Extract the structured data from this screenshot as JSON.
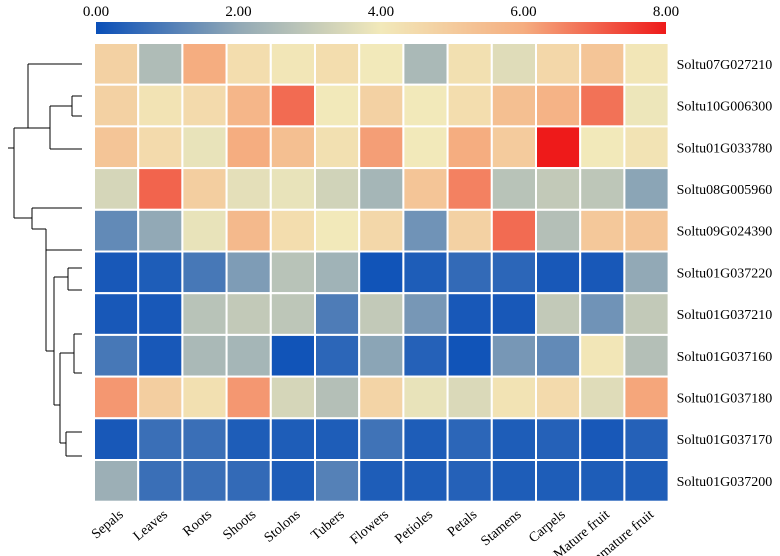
{
  "chart_data": {
    "type": "heatmap",
    "colorbar": {
      "min": 0,
      "max": 8,
      "tick_labels": [
        "0.00",
        "2.00",
        "4.00",
        "6.00",
        "8.00"
      ],
      "colors": [
        "#0a4fb8",
        "#92a9b6",
        "#f2e9ba",
        "#f5ad80",
        "#ee1a1a"
      ]
    },
    "columns": [
      "Sepals",
      "Leaves",
      "Roots",
      "Shoots",
      "Stolons",
      "Tubers",
      "Flowers",
      "Petioles",
      "Petals",
      "Stamens",
      "Carpels",
      "Mature fruit",
      "Immature fruit"
    ],
    "rows": [
      "Soltu07G027210",
      "Soltu10G006300",
      "Soltu01G033780",
      "Soltu08G005960",
      "Soltu09G024390",
      "Soltu01G037220",
      "Soltu01G037210",
      "Soltu01G037160",
      "Soltu01G037180",
      "Soltu01G037170",
      "Soltu01G037200"
    ],
    "values": [
      [
        4.8,
        2.6,
        6.0,
        4.4,
        4.1,
        4.4,
        4.0,
        2.5,
        4.3,
        3.6,
        4.6,
        5.2,
        4.1
      ],
      [
        4.8,
        4.2,
        4.5,
        5.7,
        6.9,
        4.0,
        4.8,
        4.0,
        4.4,
        5.4,
        5.8,
        6.8,
        3.9
      ],
      [
        5.2,
        4.5,
        3.8,
        6.0,
        5.4,
        4.3,
        6.2,
        4.0,
        6.0,
        5.0,
        8.0,
        4.0,
        4.2
      ],
      [
        3.4,
        7.0,
        4.9,
        3.7,
        3.8,
        3.3,
        2.4,
        5.2,
        6.6,
        2.8,
        3.0,
        2.9,
        1.9
      ],
      [
        1.3,
        2.0,
        3.8,
        5.6,
        4.4,
        4.0,
        4.6,
        1.5,
        4.8,
        6.9,
        2.7,
        5.1,
        5.2
      ],
      [
        0.2,
        0.3,
        0.9,
        1.7,
        2.8,
        2.3,
        0.1,
        0.3,
        0.6,
        0.5,
        0.2,
        0.2,
        2.0
      ],
      [
        0.2,
        0.2,
        2.8,
        3.0,
        2.9,
        1.0,
        3.0,
        1.6,
        0.2,
        0.2,
        3.0,
        1.5,
        3.0
      ],
      [
        0.9,
        0.2,
        2.5,
        2.4,
        0.1,
        0.5,
        1.9,
        0.4,
        0.1,
        1.6,
        1.3,
        4.1,
        2.7
      ],
      [
        6.3,
        4.9,
        4.3,
        6.3,
        3.4,
        2.7,
        4.7,
        3.8,
        3.5,
        4.2,
        4.5,
        3.6,
        6.1
      ],
      [
        0.2,
        0.7,
        0.7,
        0.3,
        0.3,
        0.3,
        0.8,
        0.3,
        0.5,
        0.3,
        0.4,
        0.2,
        0.4
      ],
      [
        2.2,
        0.7,
        0.7,
        0.6,
        0.3,
        1.1,
        0.3,
        0.3,
        0.4,
        0.3,
        0.3,
        0.3,
        0.3
      ]
    ]
  }
}
